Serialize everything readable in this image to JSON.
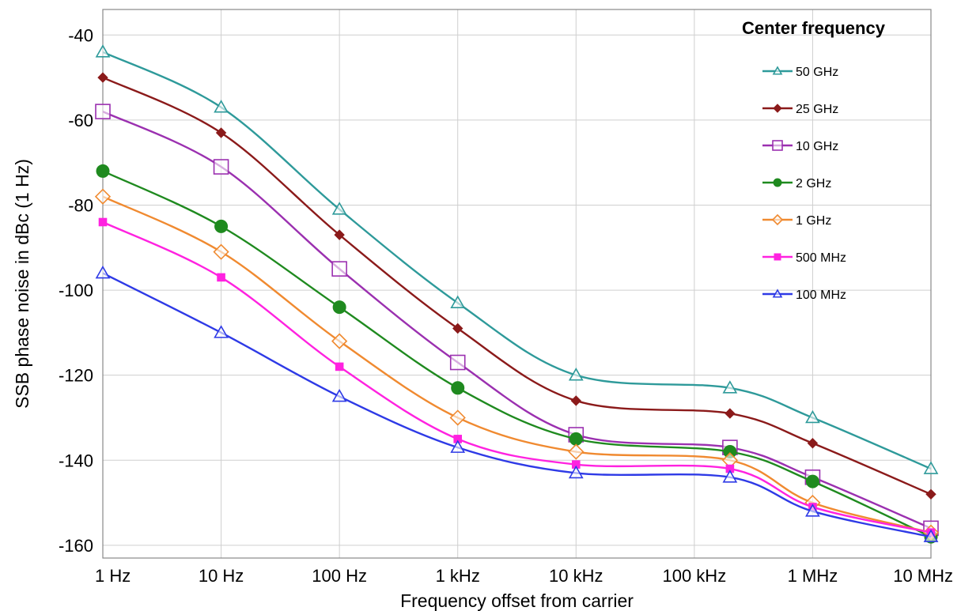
{
  "chart_data": {
    "type": "line",
    "xlabel": "Frequency offset from carrier",
    "ylabel": "SSB phase noise in dBc (1 Hz)",
    "x_scale": "log",
    "x": [
      "1 Hz",
      "10 Hz",
      "100 Hz",
      "1 kHz",
      "10 kHz",
      "200 kHz",
      "1 MHz",
      "10 MHz"
    ],
    "x_values_hz": [
      1,
      10,
      100,
      1000,
      10000,
      200000,
      1000000,
      10000000
    ],
    "x_ticks": [
      "1 Hz",
      "10 Hz",
      "100 Hz",
      "1 kHz",
      "10 kHz",
      "100 kHz",
      "1 MHz",
      "10 MHz"
    ],
    "y_ticks": [
      "-40",
      "-60",
      "-80",
      "-100",
      "-120",
      "-140",
      "-160"
    ],
    "ylim": [
      -163,
      -34
    ],
    "grid": true,
    "legend_title": "Center frequency",
    "legend_position": "top-right",
    "series": [
      {
        "name": "50 GHz",
        "color": "#2e9a9a",
        "marker": "triangle-open",
        "values": [
          -44,
          -57,
          -81,
          -103,
          -120,
          -123,
          -130,
          -142
        ]
      },
      {
        "name": "25 GHz",
        "color": "#8b1a1a",
        "marker": "diamond-filled",
        "values": [
          -50,
          -63,
          -87,
          -109,
          -126,
          -129,
          -136,
          -148
        ]
      },
      {
        "name": "10 GHz",
        "color": "#9b30b0",
        "marker": "square-open",
        "values": [
          -58,
          -71,
          -95,
          -117,
          -134,
          -137,
          -144,
          -156
        ]
      },
      {
        "name": "2 GHz",
        "color": "#1f8a1f",
        "marker": "circle-filled",
        "values": [
          -72,
          -85,
          -104,
          -123,
          -135,
          -138,
          -145,
          -158
        ]
      },
      {
        "name": "1 GHz",
        "color": "#f08a30",
        "marker": "diamond-open",
        "values": [
          -78,
          -91,
          -112,
          -130,
          -138,
          -140,
          -150,
          -157
        ]
      },
      {
        "name": "500 MHz",
        "color": "#ff22e0",
        "marker": "square-filled",
        "values": [
          -84,
          -97,
          -118,
          -135,
          -141,
          -142,
          -151,
          -157
        ]
      },
      {
        "name": "100 MHz",
        "color": "#2e3ae6",
        "marker": "triangle-open",
        "values": [
          -96,
          -110,
          -125,
          -137,
          -143,
          -144,
          -152,
          -158
        ]
      }
    ]
  }
}
